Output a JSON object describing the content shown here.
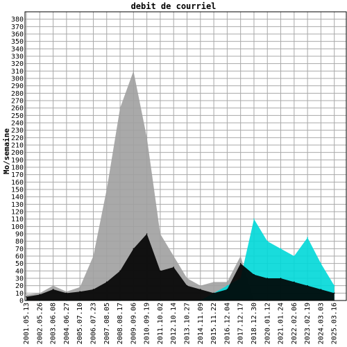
{
  "chart_data": {
    "type": "area",
    "title": "debit de courriel",
    "xlabel": "",
    "ylabel": "Mo/semaine",
    "ylim": [
      0,
      390
    ],
    "grid": true,
    "y_ticks": [
      0,
      10,
      20,
      30,
      40,
      50,
      60,
      70,
      80,
      90,
      100,
      110,
      120,
      130,
      140,
      150,
      160,
      170,
      180,
      190,
      200,
      210,
      220,
      230,
      240,
      250,
      260,
      270,
      280,
      290,
      300,
      310,
      320,
      330,
      340,
      350,
      360,
      370,
      380
    ],
    "x_ticks": [
      "2001.05.13",
      "2002.05.26",
      "2003.06.08",
      "2004.06.27",
      "2005.07.10",
      "2006.07.23",
      "2007.08.05",
      "2008.08.17",
      "2009.09.06",
      "2010.09.19",
      "2011.10.02",
      "2012.10.14",
      "2013.10.27",
      "2014.11.09",
      "2015.11.22",
      "2016.12.04",
      "2017.12.17",
      "2018.12.30",
      "2020.01.12",
      "2021.01.24",
      "2022.02.06",
      "2023.02.19",
      "2024.03.03",
      "2025.03.16"
    ],
    "series": [
      {
        "color": "#a0a0a0",
        "x": [
          "2001.05.13",
          "2002.05.26",
          "2003.06.08",
          "2004.06.27",
          "2005.07.10",
          "2006.07.23",
          "2007.08.05",
          "2008.08.17",
          "2009.09.06",
          "2010.09.19",
          "2011.10.02",
          "2012.10.14",
          "2013.10.27",
          "2014.11.09",
          "2015.11.22",
          "2016.12.04",
          "2017.12.17",
          "2018.12.30",
          "2020.01.12",
          "2021.01.24",
          "2022.02.06",
          "2023.02.19",
          "2024.03.03",
          "2025.03.16"
        ],
        "values": [
          8,
          10,
          20,
          12,
          18,
          60,
          150,
          260,
          310,
          220,
          90,
          60,
          30,
          20,
          25,
          25,
          60,
          0,
          0,
          0,
          0,
          0,
          0,
          0
        ]
      },
      {
        "color": "#00d8d8",
        "x": [
          "2001.05.13",
          "2002.05.26",
          "2003.06.08",
          "2004.06.27",
          "2005.07.10",
          "2006.07.23",
          "2007.08.05",
          "2008.08.17",
          "2009.09.06",
          "2010.09.19",
          "2011.10.02",
          "2012.10.14",
          "2013.10.27",
          "2014.11.09",
          "2015.11.22",
          "2016.12.04",
          "2017.12.17",
          "2018.12.30",
          "2020.01.12",
          "2021.01.24",
          "2022.02.06",
          "2023.02.19",
          "2024.03.03",
          "2025.03.16"
        ],
        "values": [
          0,
          0,
          0,
          0,
          0,
          0,
          0,
          0,
          0,
          0,
          0,
          0,
          0,
          0,
          10,
          20,
          30,
          110,
          80,
          70,
          60,
          85,
          50,
          20
        ]
      },
      {
        "color": "#000000",
        "x": [
          "2001.05.13",
          "2002.05.26",
          "2003.06.08",
          "2004.06.27",
          "2005.07.10",
          "2006.07.23",
          "2007.08.05",
          "2008.08.17",
          "2009.09.06",
          "2010.09.19",
          "2011.10.02",
          "2012.10.14",
          "2013.10.27",
          "2014.11.09",
          "2015.11.22",
          "2016.12.04",
          "2017.12.17",
          "2018.12.30",
          "2020.01.12",
          "2021.01.24",
          "2022.02.06",
          "2023.02.19",
          "2024.03.03",
          "2025.03.16"
        ],
        "values": [
          5,
          8,
          15,
          10,
          12,
          15,
          25,
          40,
          70,
          90,
          40,
          45,
          20,
          15,
          10,
          15,
          50,
          35,
          30,
          30,
          25,
          20,
          15,
          10
        ]
      }
    ]
  }
}
